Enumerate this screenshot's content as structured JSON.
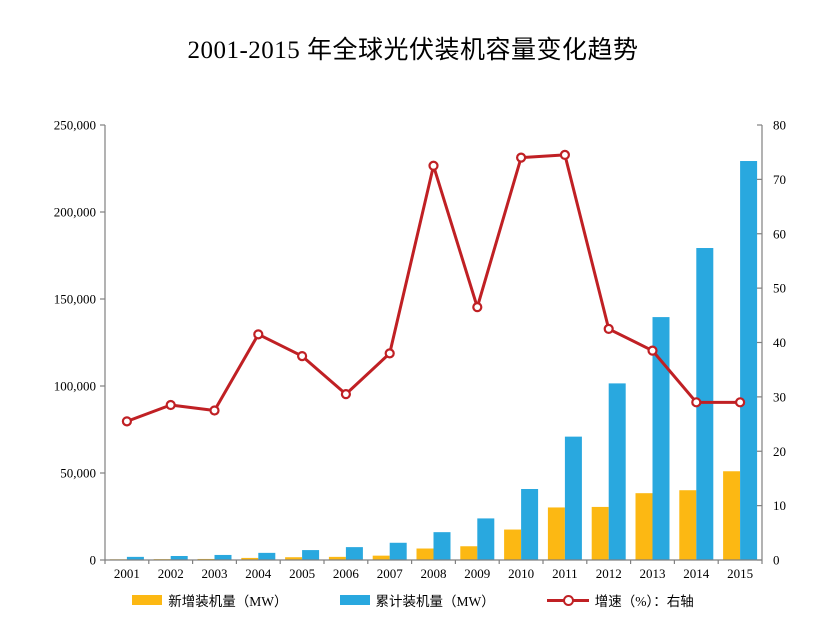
{
  "title": "2001-2015 年全球光伏装机容量变化趋势",
  "colors": {
    "new_bar": "#fcb813",
    "cumulative_bar": "#29a8df",
    "growth_line": "#c02024",
    "axis": "#808080",
    "text": "#000000",
    "background": "#ffffff"
  },
  "legend": [
    {
      "label": "新增装机量（MW）",
      "type": "bar",
      "color": "#fcb813"
    },
    {
      "label": "累计装机量（MW）",
      "type": "bar",
      "color": "#29a8df"
    },
    {
      "label": "增速（%）：右轴",
      "type": "line",
      "color": "#c02024"
    }
  ],
  "chart_data": {
    "type": "bar",
    "subtype": "bar-line-combo",
    "title": "2001-2015 年全球光伏装机容量变化趋势",
    "categories": [
      "2001",
      "2002",
      "2003",
      "2004",
      "2005",
      "2006",
      "2007",
      "2008",
      "2009",
      "2010",
      "2011",
      "2012",
      "2013",
      "2014",
      "2015"
    ],
    "series": [
      {
        "name": "新增装机量（MW）",
        "type": "bar",
        "axis": "left",
        "color": "#fcb813",
        "values": [
          400,
          500,
          600,
          1200,
          1600,
          1800,
          2500,
          6600,
          7900,
          17500,
          30200,
          30500,
          38400,
          40100,
          51000
        ]
      },
      {
        "name": "累计装机量（MW）",
        "type": "bar",
        "axis": "left",
        "color": "#29a8df",
        "values": [
          1800,
          2300,
          2900,
          4100,
          5700,
          7400,
          9900,
          16000,
          23900,
          40800,
          70900,
          101500,
          139600,
          179300,
          229300
        ]
      },
      {
        "name": "增速（%）：右轴",
        "type": "line",
        "axis": "right",
        "color": "#c02024",
        "marker": "open-circle",
        "values": [
          25.5,
          28.5,
          27.5,
          41.5,
          37.5,
          30.5,
          38,
          72.5,
          46.5,
          74,
          74.5,
          42.5,
          38.5,
          29,
          29
        ]
      }
    ],
    "left_axis": {
      "min": 0,
      "max": 250000,
      "step": 50000,
      "tick_labels": [
        "0",
        "50,000",
        "100,000",
        "150,000",
        "200,000",
        "250,000"
      ]
    },
    "right_axis": {
      "min": 0,
      "max": 80,
      "step": 10,
      "tick_labels": [
        "0",
        "10",
        "20",
        "30",
        "40",
        "50",
        "60",
        "70",
        "80"
      ]
    },
    "grid": false,
    "legend_position": "bottom"
  }
}
